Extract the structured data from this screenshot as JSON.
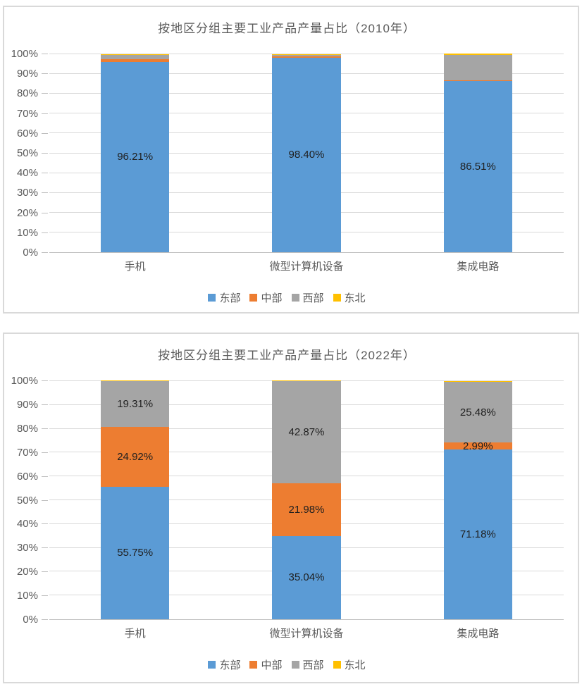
{
  "chart_data": [
    {
      "type": "bar",
      "subtype": "stacked-percent",
      "title": "按地区分组主要工业产品产量占比（2010年）",
      "categories": [
        "手机",
        "微型计算机设备",
        "集成电路"
      ],
      "series": [
        {
          "key": "east",
          "name": "东部",
          "color": "#5B9BD5",
          "values": [
            96.21,
            98.4,
            86.51
          ],
          "labels": [
            "96.21%",
            "98.40%",
            "86.51%"
          ]
        },
        {
          "key": "central",
          "name": "中部",
          "color": "#ED7D31",
          "values": [
            1.42,
            0.55,
            0.05
          ],
          "labels": [
            null,
            null,
            null
          ]
        },
        {
          "key": "west",
          "name": "西部",
          "color": "#A5A5A5",
          "values": [
            1.87,
            0.55,
            12.89
          ],
          "labels": [
            null,
            null,
            null
          ]
        },
        {
          "key": "northeast",
          "name": "东北",
          "color": "#FFC000",
          "values": [
            0.5,
            0.5,
            0.55
          ],
          "labels": [
            null,
            null,
            null
          ]
        }
      ],
      "y_axis": {
        "min": 0,
        "max": 100,
        "step": 10,
        "tick_labels": [
          "0%",
          "10%",
          "20%",
          "30%",
          "40%",
          "50%",
          "60%",
          "70%",
          "80%",
          "90%",
          "100%"
        ]
      },
      "xlabel": "",
      "ylabel": "",
      "grid": true,
      "legend_position": "bottom"
    },
    {
      "type": "bar",
      "subtype": "stacked-percent",
      "title": "按地区分组主要工业产品产量占比（2022年）",
      "categories": [
        "手机",
        "微型计算机设备",
        "集成电路"
      ],
      "series": [
        {
          "key": "east",
          "name": "东部",
          "color": "#5B9BD5",
          "values": [
            55.75,
            35.04,
            71.18
          ],
          "labels": [
            "55.75%",
            "35.04%",
            "71.18%"
          ]
        },
        {
          "key": "central",
          "name": "中部",
          "color": "#ED7D31",
          "values": [
            24.92,
            21.98,
            2.99
          ],
          "labels": [
            "24.92%",
            "21.98%",
            "2.99%"
          ]
        },
        {
          "key": "west",
          "name": "西部",
          "color": "#A5A5A5",
          "values": [
            19.31,
            42.87,
            25.48
          ],
          "labels": [
            "19.31%",
            "42.87%",
            "25.48%"
          ]
        },
        {
          "key": "northeast",
          "name": "东北",
          "color": "#FFC000",
          "values": [
            0.02,
            0.11,
            0.35
          ],
          "labels": [
            null,
            null,
            null
          ]
        }
      ],
      "y_axis": {
        "min": 0,
        "max": 100,
        "step": 10,
        "tick_labels": [
          "0%",
          "10%",
          "20%",
          "30%",
          "40%",
          "50%",
          "60%",
          "70%",
          "80%",
          "90%",
          "100%"
        ]
      },
      "xlabel": "",
      "ylabel": "",
      "grid": true,
      "legend_position": "bottom"
    }
  ],
  "colors": {
    "east": "#5B9BD5",
    "central": "#ED7D31",
    "west": "#A5A5A5",
    "northeast": "#FFC000",
    "gridline": "#D9D9D9",
    "axis_line": "#BFBFBF",
    "axis_text": "#595959",
    "data_label_text": "#1f1f1f",
    "panel_border": "#D9D9D9"
  }
}
